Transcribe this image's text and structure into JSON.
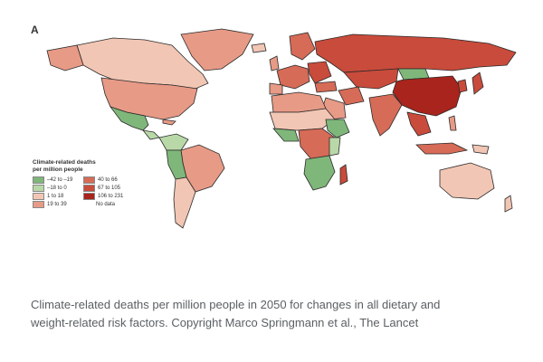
{
  "panel_label": "A",
  "legend": {
    "title_line1": "Climate-related deaths",
    "title_line2": "per million people",
    "items": [
      {
        "label": "–42 to –19",
        "color": "#7fb77a"
      },
      {
        "label": "40 to 66",
        "color": "#d66b57"
      },
      {
        "label": "–18 to 0",
        "color": "#b9d8a8"
      },
      {
        "label": "67 to 105",
        "color": "#c94b3b"
      },
      {
        "label": "1 to 18",
        "color": "#f2c6b4"
      },
      {
        "label": "106 to 231",
        "color": "#a8241c"
      },
      {
        "label": "19 to 39",
        "color": "#e79a86"
      },
      {
        "label": "No data",
        "color": ""
      }
    ]
  },
  "caption": {
    "line1": "Climate-related deaths per million people in 2050 for changes in all dietary and",
    "line2": "weight-related risk factors. Copyright Marco Springmann et al., The Lancet"
  }
}
